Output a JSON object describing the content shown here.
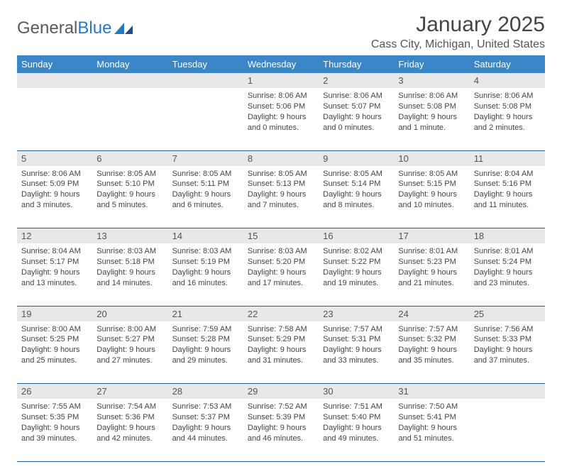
{
  "logo": {
    "text1": "General",
    "text2": "Blue"
  },
  "title": "January 2025",
  "location": "Cass City, Michigan, United States",
  "day_headers": [
    "Sunday",
    "Monday",
    "Tuesday",
    "Wednesday",
    "Thursday",
    "Friday",
    "Saturday"
  ],
  "colors": {
    "header_bg": "#3a86c8",
    "header_fg": "#ffffff",
    "daynum_bg": "#e8e8e8",
    "rule": "#2b5a8a",
    "logo_gray": "#5a5a5a",
    "logo_blue": "#2b77c0"
  },
  "weeks": [
    [
      null,
      null,
      null,
      {
        "n": "1",
        "sr": "Sunrise: 8:06 AM",
        "ss": "Sunset: 5:06 PM",
        "d1": "Daylight: 9 hours",
        "d2": "and 0 minutes."
      },
      {
        "n": "2",
        "sr": "Sunrise: 8:06 AM",
        "ss": "Sunset: 5:07 PM",
        "d1": "Daylight: 9 hours",
        "d2": "and 0 minutes."
      },
      {
        "n": "3",
        "sr": "Sunrise: 8:06 AM",
        "ss": "Sunset: 5:08 PM",
        "d1": "Daylight: 9 hours",
        "d2": "and 1 minute."
      },
      {
        "n": "4",
        "sr": "Sunrise: 8:06 AM",
        "ss": "Sunset: 5:08 PM",
        "d1": "Daylight: 9 hours",
        "d2": "and 2 minutes."
      }
    ],
    [
      {
        "n": "5",
        "sr": "Sunrise: 8:06 AM",
        "ss": "Sunset: 5:09 PM",
        "d1": "Daylight: 9 hours",
        "d2": "and 3 minutes."
      },
      {
        "n": "6",
        "sr": "Sunrise: 8:05 AM",
        "ss": "Sunset: 5:10 PM",
        "d1": "Daylight: 9 hours",
        "d2": "and 5 minutes."
      },
      {
        "n": "7",
        "sr": "Sunrise: 8:05 AM",
        "ss": "Sunset: 5:11 PM",
        "d1": "Daylight: 9 hours",
        "d2": "and 6 minutes."
      },
      {
        "n": "8",
        "sr": "Sunrise: 8:05 AM",
        "ss": "Sunset: 5:13 PM",
        "d1": "Daylight: 9 hours",
        "d2": "and 7 minutes."
      },
      {
        "n": "9",
        "sr": "Sunrise: 8:05 AM",
        "ss": "Sunset: 5:14 PM",
        "d1": "Daylight: 9 hours",
        "d2": "and 8 minutes."
      },
      {
        "n": "10",
        "sr": "Sunrise: 8:05 AM",
        "ss": "Sunset: 5:15 PM",
        "d1": "Daylight: 9 hours",
        "d2": "and 10 minutes."
      },
      {
        "n": "11",
        "sr": "Sunrise: 8:04 AM",
        "ss": "Sunset: 5:16 PM",
        "d1": "Daylight: 9 hours",
        "d2": "and 11 minutes."
      }
    ],
    [
      {
        "n": "12",
        "sr": "Sunrise: 8:04 AM",
        "ss": "Sunset: 5:17 PM",
        "d1": "Daylight: 9 hours",
        "d2": "and 13 minutes."
      },
      {
        "n": "13",
        "sr": "Sunrise: 8:03 AM",
        "ss": "Sunset: 5:18 PM",
        "d1": "Daylight: 9 hours",
        "d2": "and 14 minutes."
      },
      {
        "n": "14",
        "sr": "Sunrise: 8:03 AM",
        "ss": "Sunset: 5:19 PM",
        "d1": "Daylight: 9 hours",
        "d2": "and 16 minutes."
      },
      {
        "n": "15",
        "sr": "Sunrise: 8:03 AM",
        "ss": "Sunset: 5:20 PM",
        "d1": "Daylight: 9 hours",
        "d2": "and 17 minutes."
      },
      {
        "n": "16",
        "sr": "Sunrise: 8:02 AM",
        "ss": "Sunset: 5:22 PM",
        "d1": "Daylight: 9 hours",
        "d2": "and 19 minutes."
      },
      {
        "n": "17",
        "sr": "Sunrise: 8:01 AM",
        "ss": "Sunset: 5:23 PM",
        "d1": "Daylight: 9 hours",
        "d2": "and 21 minutes."
      },
      {
        "n": "18",
        "sr": "Sunrise: 8:01 AM",
        "ss": "Sunset: 5:24 PM",
        "d1": "Daylight: 9 hours",
        "d2": "and 23 minutes."
      }
    ],
    [
      {
        "n": "19",
        "sr": "Sunrise: 8:00 AM",
        "ss": "Sunset: 5:25 PM",
        "d1": "Daylight: 9 hours",
        "d2": "and 25 minutes."
      },
      {
        "n": "20",
        "sr": "Sunrise: 8:00 AM",
        "ss": "Sunset: 5:27 PM",
        "d1": "Daylight: 9 hours",
        "d2": "and 27 minutes."
      },
      {
        "n": "21",
        "sr": "Sunrise: 7:59 AM",
        "ss": "Sunset: 5:28 PM",
        "d1": "Daylight: 9 hours",
        "d2": "and 29 minutes."
      },
      {
        "n": "22",
        "sr": "Sunrise: 7:58 AM",
        "ss": "Sunset: 5:29 PM",
        "d1": "Daylight: 9 hours",
        "d2": "and 31 minutes."
      },
      {
        "n": "23",
        "sr": "Sunrise: 7:57 AM",
        "ss": "Sunset: 5:31 PM",
        "d1": "Daylight: 9 hours",
        "d2": "and 33 minutes."
      },
      {
        "n": "24",
        "sr": "Sunrise: 7:57 AM",
        "ss": "Sunset: 5:32 PM",
        "d1": "Daylight: 9 hours",
        "d2": "and 35 minutes."
      },
      {
        "n": "25",
        "sr": "Sunrise: 7:56 AM",
        "ss": "Sunset: 5:33 PM",
        "d1": "Daylight: 9 hours",
        "d2": "and 37 minutes."
      }
    ],
    [
      {
        "n": "26",
        "sr": "Sunrise: 7:55 AM",
        "ss": "Sunset: 5:35 PM",
        "d1": "Daylight: 9 hours",
        "d2": "and 39 minutes."
      },
      {
        "n": "27",
        "sr": "Sunrise: 7:54 AM",
        "ss": "Sunset: 5:36 PM",
        "d1": "Daylight: 9 hours",
        "d2": "and 42 minutes."
      },
      {
        "n": "28",
        "sr": "Sunrise: 7:53 AM",
        "ss": "Sunset: 5:37 PM",
        "d1": "Daylight: 9 hours",
        "d2": "and 44 minutes."
      },
      {
        "n": "29",
        "sr": "Sunrise: 7:52 AM",
        "ss": "Sunset: 5:39 PM",
        "d1": "Daylight: 9 hours",
        "d2": "and 46 minutes."
      },
      {
        "n": "30",
        "sr": "Sunrise: 7:51 AM",
        "ss": "Sunset: 5:40 PM",
        "d1": "Daylight: 9 hours",
        "d2": "and 49 minutes."
      },
      {
        "n": "31",
        "sr": "Sunrise: 7:50 AM",
        "ss": "Sunset: 5:41 PM",
        "d1": "Daylight: 9 hours",
        "d2": "and 51 minutes."
      },
      null
    ]
  ]
}
